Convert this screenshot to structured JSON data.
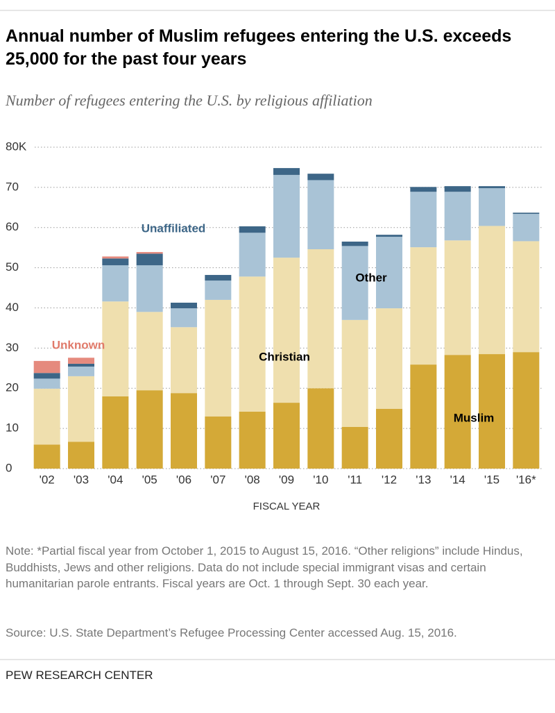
{
  "chart_data": {
    "type": "stacked-bar",
    "title": "Annual number of Muslim refugees entering the U.S. exceeds 25,000 for the past four years",
    "subtitle": "Number of refugees entering the U.S. by religious affiliation",
    "xlabel": "FISCAL YEAR",
    "categories": [
      "'02",
      "'03",
      "'04",
      "'05",
      "'06",
      "'07",
      "'08",
      "'09",
      "'10",
      "'11",
      "'12",
      "'13",
      "'14",
      "'15",
      "'16*"
    ],
    "series": [
      {
        "name": "Muslim",
        "color": "#d4a937",
        "values": [
          6.0,
          6.7,
          18.0,
          19.5,
          18.8,
          13.0,
          14.2,
          16.4,
          20.0,
          10.4,
          14.9,
          25.9,
          28.3,
          28.5,
          29.0
        ]
      },
      {
        "name": "Christian",
        "color": "#efdfae",
        "values": [
          13.9,
          16.3,
          23.6,
          19.5,
          16.4,
          29.0,
          33.6,
          36.1,
          34.6,
          26.6,
          25.0,
          29.2,
          28.5,
          31.9,
          27.6
        ]
      },
      {
        "name": "Other",
        "color": "#a9c3d6",
        "values": [
          2.5,
          2.4,
          9.0,
          11.6,
          4.7,
          4.8,
          10.9,
          20.6,
          17.2,
          18.4,
          17.8,
          13.8,
          12.1,
          9.4,
          6.8
        ]
      },
      {
        "name": "Unaffiliated",
        "color": "#3d6687",
        "values": [
          1.4,
          0.7,
          1.7,
          2.9,
          1.4,
          1.4,
          1.6,
          1.7,
          1.6,
          1.1,
          0.5,
          1.2,
          1.4,
          0.5,
          0.3
        ]
      },
      {
        "name": "Unknown",
        "color": "#e58a7e",
        "values": [
          3.0,
          1.5,
          0.5,
          0.4,
          null,
          null,
          null,
          null,
          null,
          null,
          null,
          null,
          null,
          null,
          null
        ]
      }
    ],
    "ylim": [
      0,
      80
    ],
    "yticks": [
      0,
      10,
      20,
      30,
      40,
      50,
      60,
      70,
      {
        "value": 80,
        "label": "80K"
      }
    ],
    "grid": true,
    "note": "Note: *Partial fiscal year from October 1, 2015 to August 15, 2016. “Other religions” include Hindus, Buddhists, Jews and other religions. Data do not include special immigrant visas and certain humanitarian parole entrants. Fiscal years are Oct. 1 through Sept. 30 each year.",
    "source": "Source: U.S. State Department’s Refugee Processing Center accessed Aug. 15, 2016.",
    "credit": "PEW RESEARCH CENTER"
  }
}
